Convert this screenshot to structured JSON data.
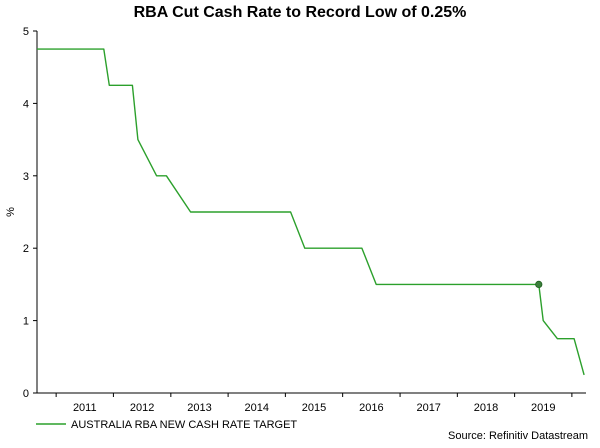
{
  "chart_data": {
    "type": "line",
    "title": "RBA Cut Cash Rate to Record Low of 0.25%",
    "ylabel": "%",
    "xlabel": "",
    "ylim": [
      0,
      5
    ],
    "xlim": [
      "2010-09-01",
      "2020-03-31"
    ],
    "y_ticks": [
      0,
      1,
      2,
      3,
      4,
      5
    ],
    "x_ticks": [
      "2011",
      "2012",
      "2013",
      "2014",
      "2015",
      "2016",
      "2017",
      "2018",
      "2019"
    ],
    "grid": false,
    "legend": "bottom-left",
    "series": [
      {
        "name": "AUSTRALIA RBA NEW CASH RATE TARGET",
        "color": "#2ca02c",
        "points": [
          [
            "2010-09-01",
            4.75
          ],
          [
            "2011-11-01",
            4.75
          ],
          [
            "2011-12-06",
            4.25
          ],
          [
            "2012-05-01",
            4.25
          ],
          [
            "2012-06-05",
            3.5
          ],
          [
            "2012-10-02",
            3.0
          ],
          [
            "2012-12-04",
            3.0
          ],
          [
            "2013-05-07",
            2.5
          ],
          [
            "2015-02-03",
            2.5
          ],
          [
            "2015-05-05",
            2.0
          ],
          [
            "2016-05-03",
            2.0
          ],
          [
            "2016-08-02",
            1.5
          ],
          [
            "2019-06-04",
            1.5
          ],
          [
            "2019-07-02",
            1.0
          ],
          [
            "2019-10-01",
            0.75
          ],
          [
            "2020-01-15",
            0.75
          ],
          [
            "2020-03-19",
            0.25
          ]
        ],
        "marker": [
          "2019-06-04",
          1.5
        ]
      }
    ],
    "source": "Source: Refinitiv Datastream"
  }
}
